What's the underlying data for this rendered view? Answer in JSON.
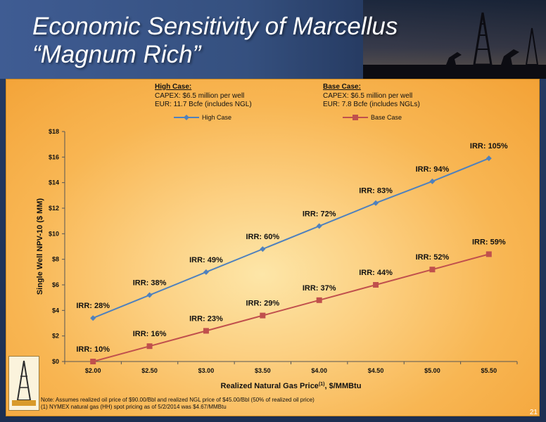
{
  "slide": {
    "title": "Economic Sensitivity of Marcellus “Magnum Rich”",
    "page_number": "21"
  },
  "cases": {
    "high": {
      "header": "High Case:",
      "capex": "CAPEX: $6.5 million per well",
      "eur": "EUR: 11.7 Bcfe (includes NGL)"
    },
    "base": {
      "header": "Base Case:",
      "capex": "CAPEX: $6.5 million per well",
      "eur": "EUR: 7.8 Bcfe (includes NGLs)"
    }
  },
  "notes": {
    "line1": "Note: Assumes realized oil price of $90.00/Bbl and realized NGL price of $45.00/Bbl (50% of realized oil price)",
    "line2": "(1) NYMEX natural gas (HH) spot pricing as of 5/2/2014 was $4.67/MMBtu"
  },
  "chart_data": {
    "type": "line",
    "x": [
      2.0,
      2.5,
      3.0,
      3.5,
      4.0,
      4.5,
      5.0,
      5.5
    ],
    "x_tick_labels": [
      "$2.00",
      "$2.50",
      "$3.00",
      "$3.50",
      "$4.00",
      "$4.50",
      "$5.00",
      "$5.50"
    ],
    "y_tick_labels": [
      "$0",
      "$2",
      "$4",
      "$6",
      "$8",
      "$10",
      "$12",
      "$14",
      "$16",
      "$18"
    ],
    "ylim": [
      0,
      18
    ],
    "xlabel": "Realized Natural Gas Price",
    "xlabel_superscript": "(1)",
    "xlabel_suffix": ", $/MMBtu",
    "ylabel": "Single Well NPV-10 ($ MM)",
    "grid": false,
    "legend_position": "top",
    "series": [
      {
        "name": "High Case",
        "color": "#4f81bd",
        "marker": "diamond",
        "values": [
          3.4,
          5.2,
          7.0,
          8.8,
          10.6,
          12.4,
          14.1,
          15.9
        ],
        "labels": [
          "IRR: 28%",
          "IRR: 38%",
          "IRR: 49%",
          "IRR: 60%",
          "IRR: 72%",
          "IRR: 83%",
          "IRR: 94%",
          "IRR: 105%"
        ]
      },
      {
        "name": "Base Case",
        "color": "#c0504d",
        "marker": "square",
        "values": [
          0.0,
          1.2,
          2.4,
          3.6,
          4.8,
          6.0,
          7.2,
          8.4
        ],
        "labels": [
          "IRR: 10%",
          "IRR: 16%",
          "IRR: 23%",
          "IRR: 29%",
          "IRR: 37%",
          "IRR: 44%",
          "IRR: 52%",
          "IRR: 59%"
        ]
      }
    ]
  }
}
